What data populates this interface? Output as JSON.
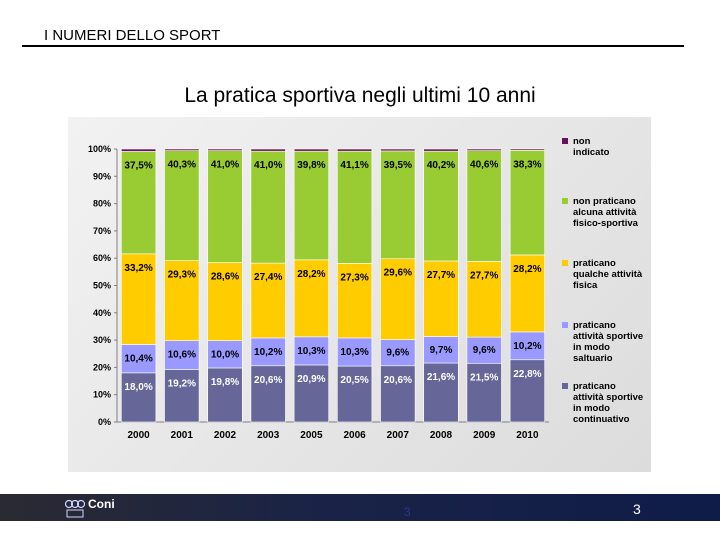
{
  "header": {
    "title": "I NUMERI DELLO SPORT"
  },
  "slide": {
    "title": "La pratica sportiva negli ultimi 10 anni"
  },
  "footer": {
    "brand": "Coni",
    "center_number": "3",
    "page_number": "3"
  },
  "colors": {
    "non_indicato": "#6a0f5a",
    "non_praticano": "#99cc33",
    "qualche": "#ffcc00",
    "saltuario": "#9999ff",
    "continuativo": "#666699",
    "footer_bg": "#1a2347"
  },
  "chart_data": {
    "type": "bar",
    "stacked": true,
    "percent": true,
    "title": "",
    "xlabel": "",
    "ylabel": "",
    "ylim": [
      0,
      100
    ],
    "y_ticks": [
      "0%",
      "10%",
      "20%",
      "30%",
      "40%",
      "50%",
      "60%",
      "70%",
      "80%",
      "90%",
      "100%"
    ],
    "categories": [
      "2000",
      "2001",
      "2002",
      "2003",
      "2005",
      "2006",
      "2007",
      "2008",
      "2009",
      "2010"
    ],
    "series": [
      {
        "name": "praticano attività sportive in modo continuativo",
        "color": "#666699",
        "values": [
          18.0,
          19.2,
          19.8,
          20.6,
          20.9,
          20.5,
          20.6,
          21.6,
          21.5,
          22.8
        ],
        "labels": [
          "18,0%",
          "19,2%",
          "19,8%",
          "20,6%",
          "20,9%",
          "20,5%",
          "20,6%",
          "21,6%",
          "21,5%",
          "22,8%"
        ]
      },
      {
        "name": "praticano attività sportive in modo saltuario",
        "color": "#9999ff",
        "values": [
          10.4,
          10.6,
          10.0,
          10.2,
          10.3,
          10.3,
          9.6,
          9.7,
          9.6,
          10.2
        ],
        "labels": [
          "10,4%",
          "10,6%",
          "10,0%",
          "10,2%",
          "10,3%",
          "10,3%",
          "9,6%",
          "9,7%",
          "9,6%",
          "10,2%"
        ]
      },
      {
        "name": "praticano qualche attività fisica",
        "color": "#ffcc00",
        "values": [
          33.2,
          29.3,
          28.6,
          27.4,
          28.2,
          27.3,
          29.6,
          27.7,
          27.7,
          28.2
        ],
        "labels": [
          "33,2%",
          "29,3%",
          "28,6%",
          "27,4%",
          "28,2%",
          "27,3%",
          "29,6%",
          "27,7%",
          "27,7%",
          "28,2%"
        ]
      },
      {
        "name": "non praticano alcuna attività fisico-sportiva",
        "color": "#99cc33",
        "values": [
          37.5,
          40.3,
          41.0,
          41.0,
          39.8,
          41.1,
          39.5,
          40.2,
          40.6,
          38.3
        ],
        "labels": [
          "37,5%",
          "40,3%",
          "41,0%",
          "41,0%",
          "39,8%",
          "41,1%",
          "39,5%",
          "40,2%",
          "40,6%",
          "38,3%"
        ]
      },
      {
        "name": "non indicato",
        "color": "#6a0f5a",
        "values": [
          0.9,
          0.6,
          0.6,
          0.8,
          0.8,
          0.8,
          0.7,
          0.8,
          0.6,
          0.5
        ],
        "labels": []
      }
    ],
    "legend": [
      {
        "label": "non indicato",
        "color": "#6a0f5a"
      },
      {
        "label": "non praticano alcuna attività fisico-sportiva",
        "color": "#99cc33"
      },
      {
        "label": "praticano qualche attività fisica",
        "color": "#ffcc00"
      },
      {
        "label": "praticano attività sportive in modo saltuario",
        "color": "#9999ff"
      },
      {
        "label": "praticano attività sportive in modo continuativo",
        "color": "#666699"
      }
    ],
    "legend_position": "right"
  }
}
